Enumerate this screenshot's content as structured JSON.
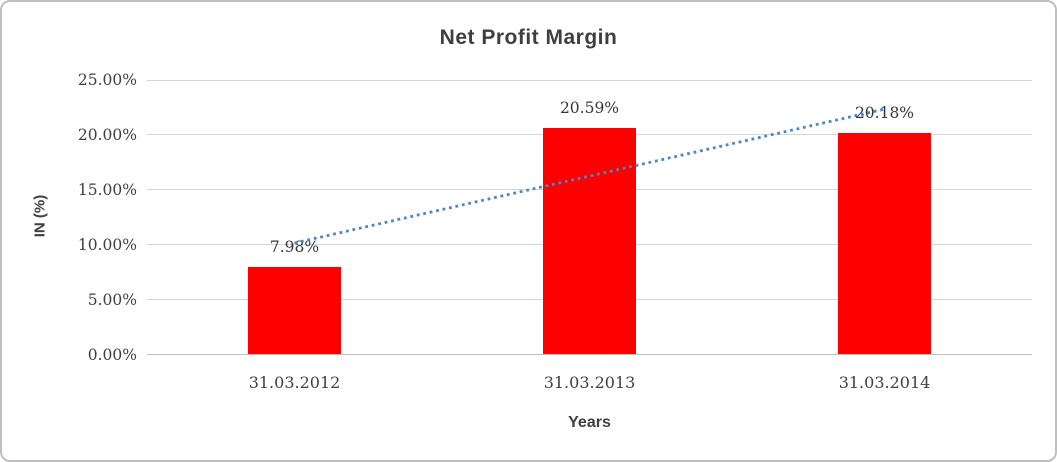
{
  "chart_data": {
    "type": "bar",
    "title": "Net Profit Margin",
    "categories": [
      "31.03.2012",
      "31.03.2013",
      "31.03.2014"
    ],
    "values": [
      7.98,
      20.59,
      20.18
    ],
    "data_labels": [
      "7.98%",
      "20.59%",
      "20.18%"
    ],
    "xlabel": "Years",
    "ylabel": "IN (%)",
    "ylim": [
      0,
      25
    ],
    "ytick_values": [
      0,
      5,
      10,
      15,
      20,
      25
    ],
    "ytick_labels": [
      "0.00%",
      "5.00%",
      "10.00%",
      "15.00%",
      "20.00%",
      "25.00%"
    ],
    "grid": "horizontal",
    "legend": "none",
    "bar_color": "#fe0000",
    "trendline": {
      "type": "linear",
      "style": "dotted",
      "color": "#4a86c8"
    },
    "text_color": "#3f3f3f",
    "gridline_color": "#d6d6d6",
    "axis_line_color": "#bfbfbf"
  }
}
